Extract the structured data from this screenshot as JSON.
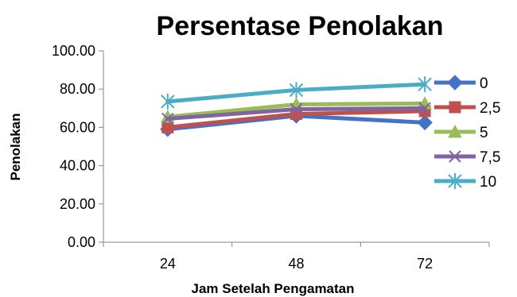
{
  "chart_data": {
    "type": "line",
    "title": "Persentase Penolakan",
    "xlabel": "Jam Setelah Pengamatan",
    "ylabel": "Penolakan",
    "categories": [
      "24",
      "48",
      "72"
    ],
    "ylim": [
      0,
      100
    ],
    "yticks": [
      "0.00",
      "20.00",
      "40.00",
      "60.00",
      "80.00",
      "100.00"
    ],
    "grid": false,
    "legend_position": "right",
    "series": [
      {
        "name": "0",
        "values": [
          59.0,
          66.0,
          62.5
        ],
        "color": "#4472C4",
        "marker": "diamond"
      },
      {
        "name": "2,5",
        "values": [
          60.0,
          67.0,
          68.5
        ],
        "color": "#C0504D",
        "marker": "square"
      },
      {
        "name": "5",
        "values": [
          65.5,
          72.0,
          72.5
        ],
        "color": "#9BBB59",
        "marker": "triangle"
      },
      {
        "name": "7,5",
        "values": [
          64.5,
          69.5,
          70.0
        ],
        "color": "#8064A2",
        "marker": "x"
      },
      {
        "name": "10",
        "values": [
          73.5,
          79.5,
          82.5
        ],
        "color": "#4BACC6",
        "marker": "star"
      }
    ]
  }
}
